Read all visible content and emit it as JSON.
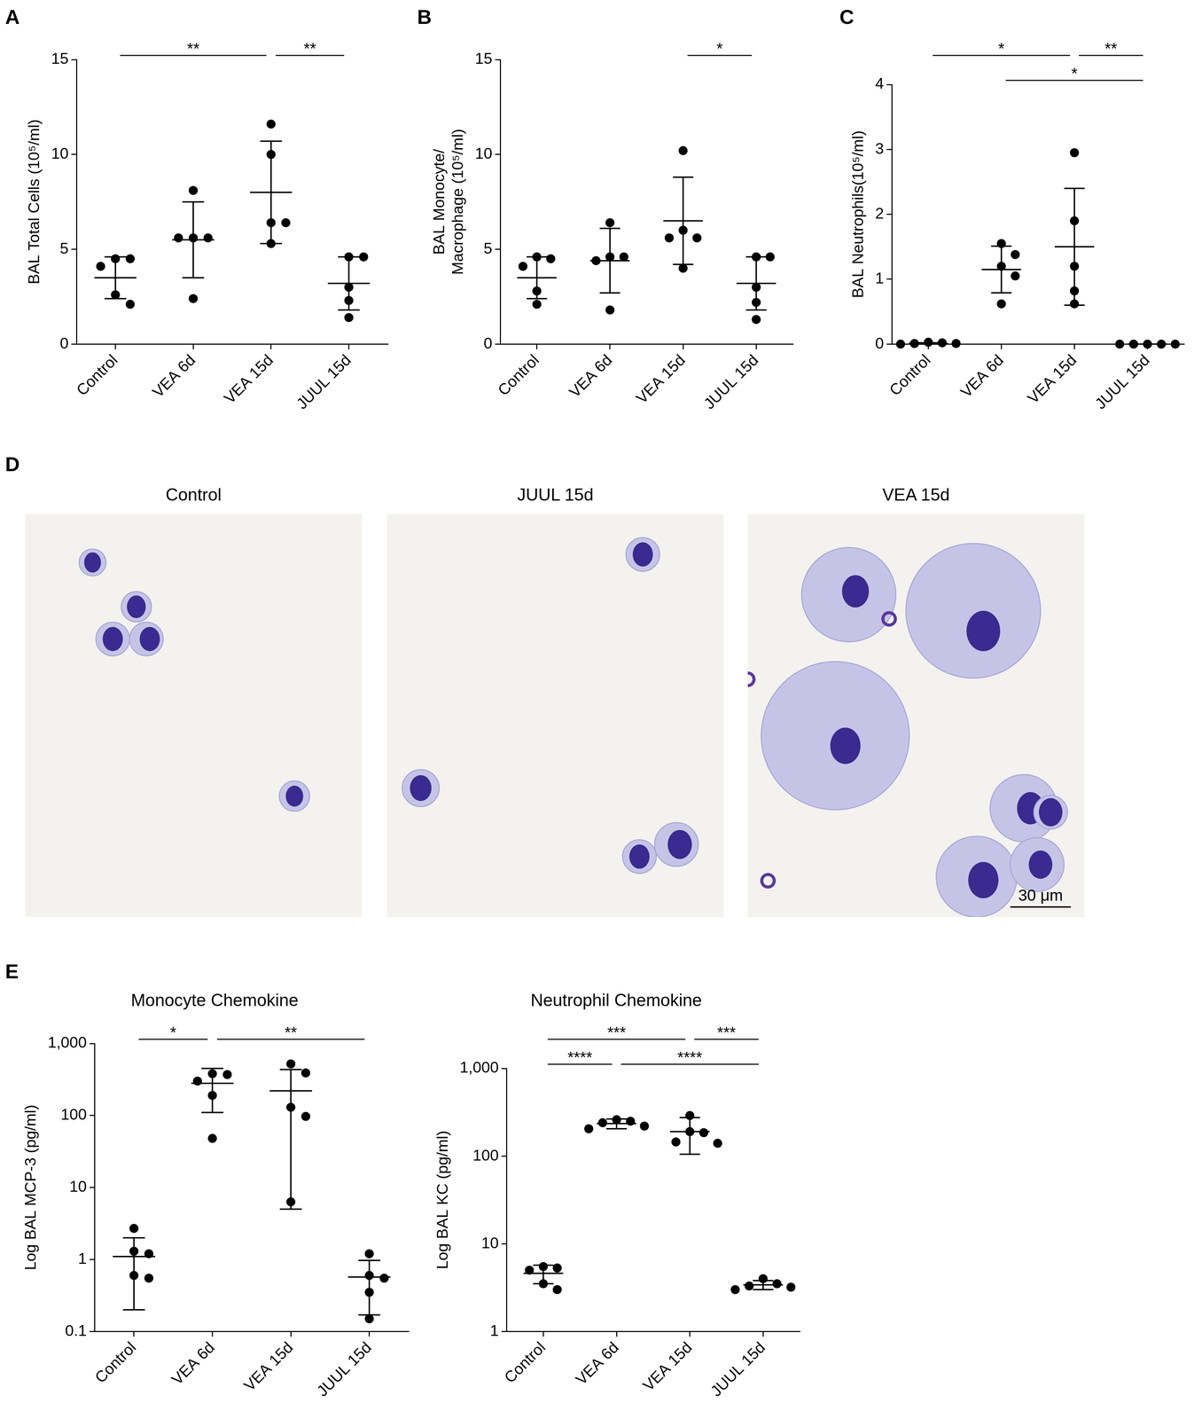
{
  "chart_data": [
    {
      "panel": "A",
      "type": "scatter",
      "categories": [
        "Control",
        "VEA 6d",
        "VEA 15d",
        "JUUL 15d"
      ],
      "values": [
        [
          4.5,
          4.5,
          4.1,
          2.6,
          2.1
        ],
        [
          8.1,
          5.6,
          5.6,
          5.6,
          2.4
        ],
        [
          11.6,
          10.0,
          6.4,
          6.4,
          5.3
        ],
        [
          4.6,
          4.6,
          3.0,
          2.3,
          1.4
        ]
      ],
      "mean": [
        3.5,
        5.5,
        8.0,
        3.2
      ],
      "sd": [
        1.1,
        2.0,
        2.7,
        1.4
      ],
      "ylabel": "BAL Total Cells (10⁵/ml)",
      "ylim": [
        0,
        15
      ],
      "yticks": [
        0,
        5,
        10,
        15
      ],
      "grid": false,
      "color": "#000000",
      "marker": "circle",
      "annotations": [
        {
          "from": "Control",
          "to": "VEA 15d",
          "text": "**"
        },
        {
          "from": "VEA 15d",
          "to": "JUUL 15d",
          "text": "**"
        }
      ]
    },
    {
      "panel": "B",
      "type": "scatter",
      "categories": [
        "Control",
        "VEA 6d",
        "VEA 15d",
        "JUUL 15d"
      ],
      "values": [
        [
          4.6,
          4.5,
          4.1,
          2.8,
          2.1
        ],
        [
          6.4,
          4.6,
          4.6,
          4.4,
          1.8
        ],
        [
          10.2,
          6.0,
          5.6,
          5.6,
          4.0
        ],
        [
          4.6,
          4.6,
          3.0,
          2.2,
          1.3
        ]
      ],
      "mean": [
        3.5,
        4.4,
        6.5,
        3.2
      ],
      "sd": [
        1.1,
        1.7,
        2.3,
        1.4
      ],
      "ylabel": [
        "BAL Monocyte/",
        "Macrophage (10⁵/ml)"
      ],
      "ylim": [
        0,
        15
      ],
      "yticks": [
        0,
        5,
        10,
        15
      ],
      "grid": false,
      "color": "#000000",
      "marker": "circle",
      "annotations": [
        {
          "from": "VEA 15d",
          "to": "JUUL 15d",
          "text": "*"
        }
      ]
    },
    {
      "panel": "C",
      "type": "scatter",
      "categories": [
        "Control",
        "VEA 6d",
        "VEA 15d",
        "JUUL 15d"
      ],
      "values": [
        [
          0.03,
          0.02,
          0.01,
          0.01,
          0.0
        ],
        [
          1.55,
          1.38,
          1.2,
          1.05,
          0.62
        ],
        [
          2.95,
          1.9,
          1.2,
          0.82,
          0.62
        ],
        [
          0,
          0,
          0,
          0,
          0
        ]
      ],
      "mean": [
        0.01,
        1.15,
        1.5,
        0
      ],
      "sd": [
        0.01,
        0.36,
        0.9,
        0
      ],
      "ylabel": "BAL Neutrophils(10⁵/ml)",
      "ylim": [
        0,
        4
      ],
      "yticks": [
        0,
        1,
        2,
        3,
        4
      ],
      "grid": false,
      "color": "#000000",
      "marker": "circle",
      "annotations": [
        {
          "from": "Control",
          "to": "VEA 15d",
          "text": "*"
        },
        {
          "from": "VEA 15d",
          "to": "JUUL 15d",
          "text": "**"
        },
        {
          "from": "VEA 6d",
          "to": "JUUL 15d",
          "text": "*"
        }
      ]
    },
    {
      "panel": "E",
      "type": "scatter",
      "title": "Monocyte Chemokine",
      "categories": [
        "Control",
        "VEA 6d",
        "VEA 15d",
        "JUUL 15d"
      ],
      "values": [
        [
          2.7,
          1.3,
          1.2,
          0.6,
          0.55
        ],
        [
          380,
          370,
          300,
          190,
          48
        ],
        [
          520,
          390,
          130,
          97,
          6.3
        ],
        [
          1.2,
          0.6,
          0.55,
          0.35,
          0.15
        ]
      ],
      "mean": [
        1.1,
        280,
        220,
        0.57
      ],
      "sd": [
        0.9,
        170,
        215,
        0.4
      ],
      "ylabel": "Log BAL MCP-3 (pg/ml)",
      "log": "y",
      "ylim": [
        0.1,
        1000
      ],
      "yticks": [
        0.1,
        1,
        10,
        100,
        {
          "value": 1000,
          "label": "1,000"
        }
      ],
      "grid": false,
      "color": "#000000",
      "marker": "circle",
      "annotations": [
        {
          "from": "Control",
          "to": "VEA 6d",
          "text": "*"
        },
        {
          "from": "VEA 6d",
          "to": "JUUL 15d",
          "text": "**"
        }
      ]
    },
    {
      "type": "scatter",
      "title": "Neutrophil Chemokine",
      "categories": [
        "Control",
        "VEA 6d",
        "VEA 15d",
        "JUUL 15d"
      ],
      "values": [
        [
          5.5,
          5.3,
          5.0,
          3.5,
          3.0
        ],
        [
          260,
          250,
          240,
          220,
          205
        ],
        [
          290,
          190,
          185,
          145,
          140
        ],
        [
          4.0,
          3.5,
          3.3,
          3.2,
          3.0
        ]
      ],
      "mean": [
        4.6,
        235,
        190,
        3.4
      ],
      "sd": [
        1.1,
        30,
        85,
        0.4
      ],
      "ylabel": "Log BAL KC (pg/ml)",
      "log": "y",
      "ylim": [
        1,
        1000
      ],
      "yticks": [
        1,
        10,
        100,
        {
          "value": 1000,
          "label": "1,000"
        }
      ],
      "grid": false,
      "color": "#000000",
      "marker": "circle",
      "annotations": [
        {
          "from": "Control",
          "to": "VEA 15d",
          "text": "***"
        },
        {
          "from": "VEA 15d",
          "to": "JUUL 15d",
          "text": "***"
        },
        {
          "from": "Control",
          "to": "VEA 6d",
          "text": "****"
        },
        {
          "from": "VEA 6d",
          "to": "JUUL 15d",
          "text": "****"
        }
      ]
    }
  ],
  "image_panel": {
    "panel": "D",
    "images": [
      "Control",
      "JUUL 15d",
      "VEA 15d"
    ],
    "scale_bar": "30 μm"
  }
}
